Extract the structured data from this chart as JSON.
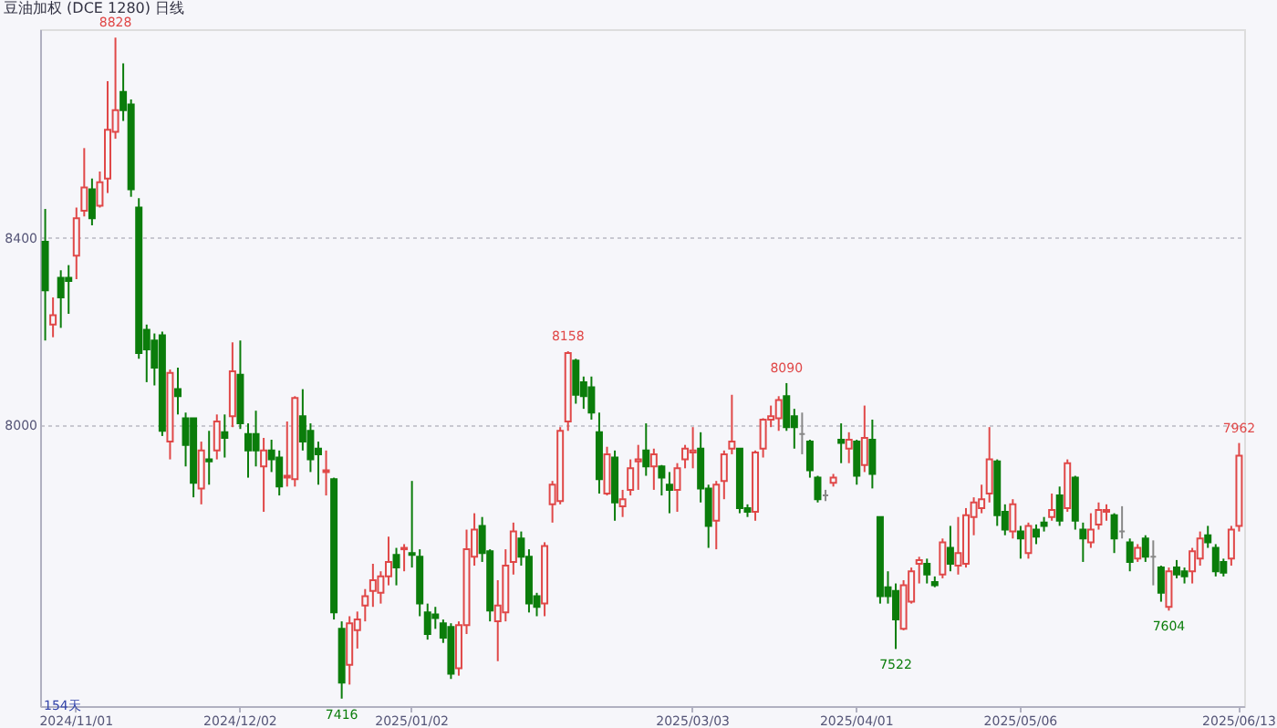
{
  "chart_data": {
    "type": "candlestick",
    "title": "豆油加权 (DCE 1280)  日线",
    "categories": [
      null,
      null,
      null,
      null,
      "2024/11/01",
      null,
      null,
      null,
      null,
      null,
      null,
      null,
      null,
      null,
      null,
      null,
      null,
      null,
      null,
      null,
      null,
      null,
      null,
      null,
      null,
      "2024/12/02",
      null,
      null,
      null,
      null,
      null,
      null,
      null,
      null,
      null,
      null,
      null,
      null,
      null,
      null,
      null,
      null,
      null,
      null,
      null,
      null,
      null,
      "2025/01/02",
      null,
      null,
      null,
      null,
      null,
      null,
      null,
      null,
      null,
      null,
      null,
      null,
      null,
      null,
      null,
      null,
      null,
      null,
      null,
      null,
      null,
      null,
      null,
      null,
      null,
      null,
      null,
      null,
      null,
      null,
      null,
      null,
      null,
      null,
      null,
      "2025/03/03",
      null,
      null,
      null,
      null,
      null,
      null,
      null,
      null,
      null,
      null,
      null,
      null,
      null,
      null,
      null,
      null,
      null,
      null,
      null,
      null,
      "2025/04/01",
      null,
      null,
      null,
      null,
      null,
      null,
      null,
      null,
      null,
      null,
      null,
      null,
      null,
      null,
      null,
      null,
      null,
      null,
      null,
      null,
      "2025/05/06",
      null,
      null,
      null,
      null,
      null,
      null,
      null,
      null,
      null,
      null,
      null,
      null,
      null,
      null,
      null,
      null,
      null,
      null,
      null,
      null,
      null,
      null,
      null,
      null,
      null,
      null,
      null,
      "2025/06/13"
    ],
    "ohlc": [
      [
        8392,
        8462,
        8181,
        8288
      ],
      [
        8215,
        8273,
        8188,
        8235
      ],
      [
        8315,
        8331,
        8208,
        8273
      ],
      [
        8315,
        8342,
        8238,
        8308
      ],
      [
        8362,
        8465,
        8312,
        8442
      ],
      [
        8458,
        8592,
        8446,
        8508
      ],
      [
        8504,
        8527,
        8427,
        8442
      ],
      [
        8469,
        8542,
        8465,
        8519
      ],
      [
        8527,
        8735,
        8496,
        8631
      ],
      [
        8627,
        8828,
        8612,
        8673
      ],
      [
        8712,
        8773,
        8650,
        8673
      ],
      [
        8685,
        8696,
        8488,
        8504
      ],
      [
        8465,
        8485,
        8142,
        8154
      ],
      [
        8204,
        8215,
        8092,
        8162
      ],
      [
        8181,
        8196,
        8085,
        8123
      ],
      [
        8192,
        8200,
        7977,
        7988
      ],
      [
        7965,
        8119,
        7927,
        8112
      ],
      [
        8077,
        8123,
        8023,
        8062
      ],
      [
        8015,
        8027,
        7912,
        7958
      ],
      [
        8015,
        8015,
        7846,
        7877
      ],
      [
        7865,
        7965,
        7831,
        7946
      ],
      [
        7927,
        7988,
        7873,
        7923
      ],
      [
        7946,
        8023,
        7927,
        8008
      ],
      [
        7985,
        8023,
        7931,
        7973
      ],
      [
        8019,
        8177,
        7996,
        8115
      ],
      [
        8108,
        8181,
        7992,
        8004
      ],
      [
        7981,
        8004,
        7888,
        7946
      ],
      [
        7981,
        8031,
        7912,
        7946
      ],
      [
        7912,
        7973,
        7815,
        7946
      ],
      [
        7946,
        7969,
        7900,
        7927
      ],
      [
        7931,
        7946,
        7850,
        7869
      ],
      [
        7888,
        8008,
        7869,
        7892
      ],
      [
        7885,
        8062,
        7869,
        8058
      ],
      [
        8019,
        8077,
        7946,
        7965
      ],
      [
        7988,
        8004,
        7900,
        7927
      ],
      [
        7950,
        7965,
        7873,
        7938
      ],
      [
        7900,
        7946,
        7850,
        7904
      ],
      [
        7885,
        7888,
        7585,
        7600
      ],
      [
        7565,
        7581,
        7416,
        7450
      ],
      [
        7488,
        7592,
        7446,
        7577
      ],
      [
        7562,
        7602,
        7523,
        7585
      ],
      [
        7615,
        7650,
        7581,
        7635
      ],
      [
        7646,
        7704,
        7612,
        7669
      ],
      [
        7642,
        7688,
        7619,
        7677
      ],
      [
        7677,
        7762,
        7658,
        7708
      ],
      [
        7723,
        7738,
        7658,
        7696
      ],
      [
        7735,
        7746,
        7688,
        7738
      ],
      [
        7727,
        7881,
        7696,
        7723
      ],
      [
        7719,
        7735,
        7592,
        7619
      ],
      [
        7600,
        7619,
        7542,
        7554
      ],
      [
        7596,
        7612,
        7565,
        7588
      ],
      [
        7577,
        7585,
        7535,
        7546
      ],
      [
        7569,
        7577,
        7458,
        7469
      ],
      [
        7481,
        7581,
        7465,
        7573
      ],
      [
        7573,
        7777,
        7554,
        7735
      ],
      [
        7719,
        7812,
        7700,
        7777
      ],
      [
        7785,
        7804,
        7708,
        7727
      ],
      [
        7731,
        7735,
        7581,
        7604
      ],
      [
        7581,
        7669,
        7496,
        7615
      ],
      [
        7600,
        7735,
        7581,
        7700
      ],
      [
        7708,
        7792,
        7681,
        7773
      ],
      [
        7758,
        7773,
        7700,
        7719
      ],
      [
        7719,
        7735,
        7600,
        7619
      ],
      [
        7635,
        7642,
        7592,
        7612
      ],
      [
        7619,
        7750,
        7592,
        7742
      ],
      [
        7831,
        7881,
        7792,
        7873
      ],
      [
        7838,
        7996,
        7831,
        7988
      ],
      [
        8008,
        8158,
        7988,
        8154
      ],
      [
        8138,
        8142,
        8046,
        8065
      ],
      [
        8092,
        8104,
        8035,
        8062
      ],
      [
        8081,
        8104,
        8012,
        8027
      ],
      [
        7985,
        8027,
        7854,
        7885
      ],
      [
        7854,
        7954,
        7850,
        7938
      ],
      [
        7931,
        7946,
        7796,
        7835
      ],
      [
        7827,
        7862,
        7804,
        7842
      ],
      [
        7862,
        7927,
        7850,
        7908
      ],
      [
        7923,
        7958,
        7862,
        7927
      ],
      [
        7946,
        8004,
        7892,
        7912
      ],
      [
        7912,
        7950,
        7862,
        7938
      ],
      [
        7912,
        7915,
        7850,
        7888
      ],
      [
        7873,
        7900,
        7812,
        7862
      ],
      [
        7862,
        7919,
        7815,
        7908
      ],
      [
        7927,
        7958,
        7908,
        7950
      ],
      [
        7942,
        7996,
        7908,
        7946
      ],
      [
        7950,
        7985,
        7835,
        7865
      ],
      [
        7865,
        7873,
        7738,
        7785
      ],
      [
        7796,
        7881,
        7735,
        7873
      ],
      [
        7881,
        7946,
        7842,
        7938
      ],
      [
        7950,
        8065,
        7938,
        7965
      ],
      [
        7950,
        7950,
        7812,
        7823
      ],
      [
        7823,
        7831,
        7804,
        7815
      ],
      [
        7815,
        7946,
        7796,
        7942
      ],
      [
        7950,
        8015,
        7931,
        8012
      ],
      [
        8012,
        8042,
        7996,
        8019
      ],
      [
        8015,
        8062,
        7988,
        8054
      ],
      [
        8062,
        8090,
        7988,
        7996
      ],
      [
        8019,
        8035,
        7950,
        7996
      ],
      [
        7981,
        8027,
        7938,
        7981
      ],
      [
        7965,
        7969,
        7888,
        7904
      ],
      [
        7888,
        7892,
        7835,
        7842
      ],
      [
        7850,
        7862,
        7838,
        7850
      ],
      [
        7877,
        7896,
        7869,
        7888
      ],
      [
        7969,
        8004,
        7919,
        7962
      ],
      [
        7950,
        7985,
        7919,
        7969
      ],
      [
        7965,
        7969,
        7873,
        7892
      ],
      [
        7915,
        8042,
        7900,
        7973
      ],
      [
        7969,
        8012,
        7865,
        7896
      ],
      [
        7804,
        7804,
        7619,
        7635
      ],
      [
        7654,
        7688,
        7619,
        7635
      ],
      [
        7646,
        7662,
        7522,
        7585
      ],
      [
        7565,
        7669,
        7562,
        7658
      ],
      [
        7623,
        7696,
        7619,
        7688
      ],
      [
        7704,
        7719,
        7662,
        7712
      ],
      [
        7704,
        7715,
        7662,
        7681
      ],
      [
        7665,
        7677,
        7654,
        7658
      ],
      [
        7681,
        7758,
        7673,
        7750
      ],
      [
        7738,
        7785,
        7688,
        7704
      ],
      [
        7700,
        7804,
        7681,
        7727
      ],
      [
        7704,
        7823,
        7696,
        7808
      ],
      [
        7804,
        7846,
        7765,
        7835
      ],
      [
        7823,
        7873,
        7812,
        7842
      ],
      [
        7854,
        7996,
        7835,
        7927
      ],
      [
        7923,
        7927,
        7785,
        7808
      ],
      [
        7815,
        7831,
        7765,
        7777
      ],
      [
        7773,
        7842,
        7758,
        7831
      ],
      [
        7773,
        7785,
        7715,
        7758
      ],
      [
        7727,
        7792,
        7715,
        7785
      ],
      [
        7777,
        7788,
        7746,
        7762
      ],
      [
        7792,
        7804,
        7773,
        7785
      ],
      [
        7804,
        7854,
        7796,
        7819
      ],
      [
        7850,
        7869,
        7785,
        7796
      ],
      [
        7823,
        7927,
        7815,
        7919
      ],
      [
        7888,
        7892,
        7777,
        7796
      ],
      [
        7777,
        7792,
        7708,
        7758
      ],
      [
        7750,
        7812,
        7738,
        7777
      ],
      [
        7788,
        7835,
        7777,
        7819
      ],
      [
        7815,
        7831,
        7796,
        7819
      ],
      [
        7808,
        7812,
        7727,
        7758
      ],
      [
        7773,
        7827,
        7758,
        7773
      ],
      [
        7750,
        7758,
        7688,
        7708
      ],
      [
        7715,
        7746,
        7708,
        7738
      ],
      [
        7758,
        7765,
        7708,
        7719
      ],
      [
        7719,
        7754,
        7658,
        7719
      ],
      [
        7696,
        7700,
        7623,
        7642
      ],
      [
        7612,
        7696,
        7604,
        7688
      ],
      [
        7696,
        7712,
        7673,
        7681
      ],
      [
        7688,
        7696,
        7662,
        7677
      ],
      [
        7688,
        7738,
        7662,
        7731
      ],
      [
        7715,
        7773,
        7700,
        7758
      ],
      [
        7765,
        7785,
        7738,
        7750
      ],
      [
        7738,
        7746,
        7677,
        7688
      ],
      [
        7708,
        7715,
        7677,
        7685
      ],
      [
        7715,
        7785,
        7700,
        7777
      ],
      [
        7785,
        7962,
        7773,
        7935
      ]
    ],
    "colors": [
      "#0b7d0b",
      "#e04848",
      "#0b7d0b",
      "#0b7d0b",
      "#e04848",
      "#e04848",
      "#0b7d0b",
      "#e04848",
      "#e04848",
      "#e04848",
      "#0b7d0b",
      "#0b7d0b",
      "#0b7d0b",
      "#0b7d0b",
      "#0b7d0b",
      "#0b7d0b",
      "#e04848",
      "#0b7d0b",
      "#0b7d0b",
      "#0b7d0b",
      "#e04848",
      "#0b7d0b",
      "#e04848",
      "#0b7d0b",
      "#e04848",
      "#0b7d0b",
      "#0b7d0b",
      "#0b7d0b",
      "#e04848",
      "#0b7d0b",
      "#0b7d0b",
      "#e04848",
      "#e04848",
      "#0b7d0b",
      "#0b7d0b",
      "#0b7d0b",
      "#e04848",
      "#0b7d0b",
      "#0b7d0b",
      "#e04848",
      "#e04848",
      "#e04848",
      "#e04848",
      "#e04848",
      "#e04848",
      "#0b7d0b",
      "#e04848",
      "#0b7d0b",
      "#0b7d0b",
      "#0b7d0b",
      "#0b7d0b",
      "#0b7d0b",
      "#0b7d0b",
      "#e04848",
      "#e04848",
      "#e04848",
      "#0b7d0b",
      "#0b7d0b",
      "#e04848",
      "#e04848",
      "#e04848",
      "#0b7d0b",
      "#0b7d0b",
      "#0b7d0b",
      "#e04848",
      "#e04848",
      "#e04848",
      "#e04848",
      "#0b7d0b",
      "#0b7d0b",
      "#0b7d0b",
      "#0b7d0b",
      "#e04848",
      "#0b7d0b",
      "#e04848",
      "#e04848",
      "#e04848",
      "#0b7d0b",
      "#e04848",
      "#0b7d0b",
      "#0b7d0b",
      "#e04848",
      "#e04848",
      "#e04848",
      "#0b7d0b",
      "#0b7d0b",
      "#e04848",
      "#e04848",
      "#e04848",
      "#0b7d0b",
      "#0b7d0b",
      "#e04848",
      "#e04848",
      "#e04848",
      "#e04848",
      "#0b7d0b",
      "#0b7d0b",
      "#888888",
      "#0b7d0b",
      "#0b7d0b",
      "#888888",
      "#e04848",
      "#0b7d0b",
      "#e04848",
      "#0b7d0b",
      "#e04848",
      "#0b7d0b",
      "#0b7d0b",
      "#0b7d0b",
      "#0b7d0b",
      "#e04848",
      "#e04848",
      "#e04848",
      "#0b7d0b",
      "#0b7d0b",
      "#e04848",
      "#0b7d0b",
      "#e04848",
      "#e04848",
      "#e04848",
      "#e04848",
      "#e04848",
      "#0b7d0b",
      "#0b7d0b",
      "#e04848",
      "#0b7d0b",
      "#e04848",
      "#0b7d0b",
      "#0b7d0b",
      "#e04848",
      "#0b7d0b",
      "#e04848",
      "#0b7d0b",
      "#0b7d0b",
      "#e04848",
      "#e04848",
      "#e04848",
      "#0b7d0b",
      "#888888",
      "#0b7d0b",
      "#e04848",
      "#0b7d0b",
      "#888888",
      "#0b7d0b",
      "#e04848",
      "#0b7d0b",
      "#0b7d0b",
      "#e04848",
      "#e04848",
      "#0b7d0b",
      "#0b7d0b",
      "#0b7d0b",
      "#e04848",
      "#e04848"
    ],
    "ylim": [
      7400,
      8846
    ],
    "yticks": [
      8000,
      8400
    ],
    "grid": "y",
    "annotations": [
      "154天",
      {
        "text": "8828",
        "y": 8828
      },
      {
        "text": "8158",
        "y": 8158
      },
      {
        "text": "8090",
        "y": 8090
      },
      {
        "text": "7962",
        "y": 7962
      },
      {
        "text": "7416",
        "y": 7416
      },
      {
        "text": "7522",
        "y": 7522
      },
      {
        "text": "7604",
        "y": 7604
      }
    ]
  }
}
